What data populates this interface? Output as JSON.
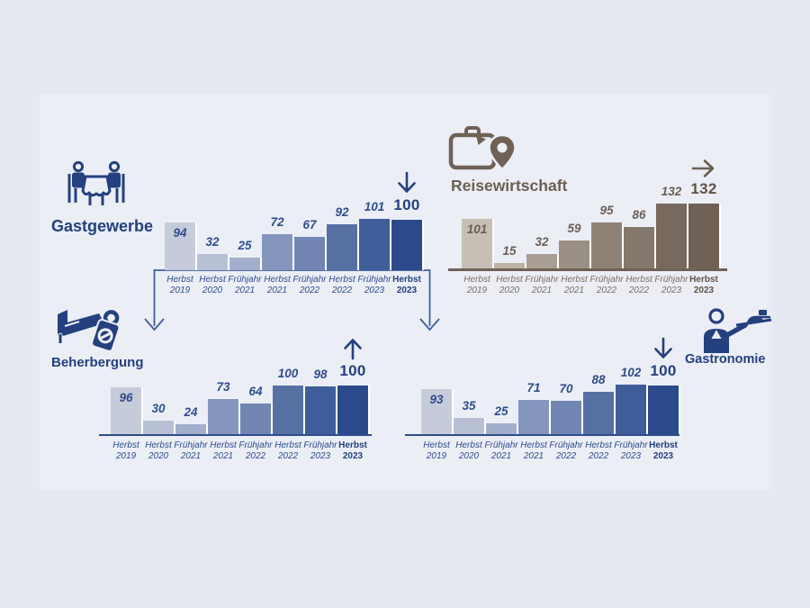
{
  "page": {
    "background_color": "#e6e9f1",
    "panel_color": "#ebeef5"
  },
  "palette": {
    "blue_bars": [
      "#c6cbda",
      "#b7c0d4",
      "#a2aecb",
      "#8496bd",
      "#7186b2",
      "#5670a3",
      "#3f5d99",
      "#2b4a8b"
    ],
    "brown_bars": [
      "#c7bfb6",
      "#bcb2a8",
      "#a99e93",
      "#9b9085",
      "#8e8276",
      "#84786c",
      "#77695d",
      "#6f6156"
    ],
    "navy_text": "#24407e",
    "navy_value_text": "#2f4c8c",
    "brown_text": "#6b5f53",
    "axis_brown": "#6f6156",
    "axis_blue": "#2f4c8c",
    "connector_blue": "#3f5d99",
    "bar_gap_color": "#ffffff"
  },
  "chart_data": [
    {
      "id": "gastgewerbe",
      "type": "bar",
      "title": "Gastgewerbe",
      "icon": "people-at-table-icon",
      "categories": [
        "Herbst 2019",
        "Herbst 2020",
        "Frühjahr 2021",
        "Herbst 2021",
        "Frühjahr 2022",
        "Herbst 2022",
        "Frühjahr 2023",
        "Herbst 2023"
      ],
      "values": [
        94,
        32,
        25,
        72,
        67,
        92,
        101,
        100
      ],
      "final_value": "100",
      "trend": "down",
      "color_scheme": "blue",
      "ylim": [
        0,
        140
      ],
      "grid": false,
      "legend": "none"
    },
    {
      "id": "reisewirtschaft",
      "type": "bar",
      "title": "Reisewirtschaft",
      "icon": "suitcase-location-pin-icon",
      "categories": [
        "Herbst 2019",
        "Herbst 2020",
        "Frühjahr 2021",
        "Herbst 2021",
        "Frühjahr 2022",
        "Herbst 2022",
        "Frühjahr 2023",
        "Herbst 2023"
      ],
      "values": [
        101,
        15,
        32,
        59,
        95,
        86,
        132,
        132
      ],
      "final_value": "132",
      "trend": "right",
      "color_scheme": "brown",
      "ylim": [
        0,
        140
      ],
      "grid": false,
      "legend": "none"
    },
    {
      "id": "beherbergung",
      "type": "bar",
      "title": "Beherbergung",
      "icon": "bed-door-hanger-icon",
      "categories": [
        "Herbst 2019",
        "Herbst 2020",
        "Frühjahr 2021",
        "Herbst 2021",
        "Frühjahr 2022",
        "Herbst 2022",
        "Frühjahr 2023",
        "Herbst 2023"
      ],
      "values": [
        96,
        30,
        24,
        73,
        64,
        100,
        98,
        100
      ],
      "final_value": "100",
      "trend": "up",
      "color_scheme": "blue",
      "ylim": [
        0,
        140
      ],
      "grid": false,
      "legend": "none"
    },
    {
      "id": "gastronomie",
      "type": "bar",
      "title": "Gastronomie",
      "icon": "waiter-tray-icon",
      "categories": [
        "Herbst 2019",
        "Herbst 2020",
        "Frühjahr 2021",
        "Herbst 2021",
        "Frühjahr 2022",
        "Herbst 2022",
        "Frühjahr 2023",
        "Herbst 2023"
      ],
      "values": [
        93,
        35,
        25,
        71,
        70,
        88,
        102,
        100
      ],
      "final_value": "100",
      "trend": "down",
      "color_scheme": "blue",
      "ylim": [
        0,
        140
      ],
      "grid": false,
      "legend": "none"
    }
  ]
}
